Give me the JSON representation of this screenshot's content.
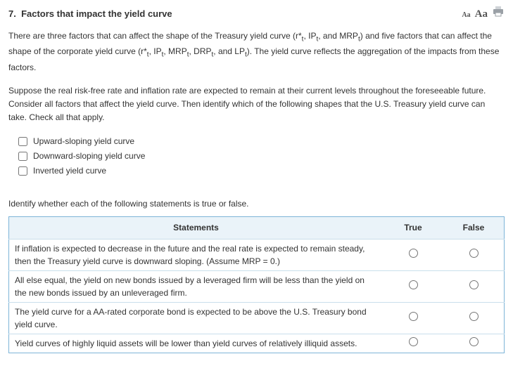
{
  "header": {
    "number": "7.",
    "title": "Factors that impact the yield curve",
    "tool_small": "Aa",
    "tool_large": "Aa"
  },
  "intro_html": "There are three factors that can affect the shape of the Treasury yield curve (r*<sub>t</sub>, IP<sub>t</sub>, and MRP<sub>t</sub>) and five factors that can affect the shape of the corporate yield curve (r*<sub>t</sub>, IP<sub>t</sub>, MRP<sub>t</sub>, DRP<sub>t</sub>, and LP<sub>t</sub>). The yield curve reflects the aggregation of the impacts from these factors.",
  "scenario": "Suppose the real risk-free rate and inflation rate are expected to remain at their current levels throughout the foreseeable future. Consider all factors that affect the yield curve. Then identify which of the following shapes that the U.S. Treasury yield curve can take. Check all that apply.",
  "checks": [
    {
      "label": "Upward-sloping yield curve"
    },
    {
      "label": "Downward-sloping yield curve"
    },
    {
      "label": "Inverted yield curve"
    }
  ],
  "tf_prompt": "Identify whether each of the following statements is true or false.",
  "tf_table": {
    "col_statements": "Statements",
    "col_true": "True",
    "col_false": "False",
    "rows": [
      {
        "text": "If inflation is expected to decrease in the future and the real rate is expected to remain steady, then the Treasury yield curve is downward sloping. (Assume MRP = 0.)"
      },
      {
        "text": "All else equal, the yield on new bonds issued by a leveraged firm will be less than the yield on the new bonds issued by an unleveraged firm."
      },
      {
        "text": "The yield curve for a AA-rated corporate bond is expected to be above the U.S. Treasury bond yield curve."
      },
      {
        "text": "Yield curves of highly liquid assets will be lower than yield curves of relatively illiquid assets."
      }
    ]
  },
  "colors": {
    "table_border": "#7db4d8",
    "table_header_bg": "#eaf3f9",
    "row_divider": "#c9dfeb",
    "text": "#333333"
  }
}
